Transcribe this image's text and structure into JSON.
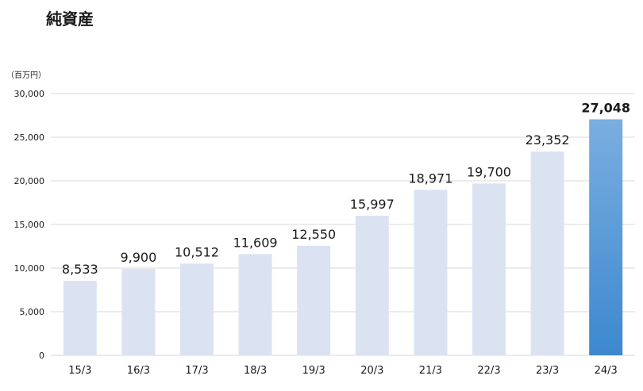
{
  "chart_data": {
    "type": "bar",
    "title": "純資産",
    "ylabel": "（百万円）",
    "xlabel": "",
    "categories": [
      "15/3",
      "16/3",
      "17/3",
      "18/3",
      "19/3",
      "20/3",
      "21/3",
      "22/3",
      "23/3",
      "24/3"
    ],
    "values": [
      8533,
      9900,
      10512,
      11609,
      12550,
      15997,
      18971,
      19700,
      23352,
      27048
    ],
    "value_labels": [
      "8,533",
      "9,900",
      "10,512",
      "11,609",
      "12,550",
      "15,997",
      "18,971",
      "19,700",
      "23,352",
      "27,048"
    ],
    "yticks": [
      0,
      5000,
      10000,
      15000,
      20000,
      25000,
      30000
    ],
    "ytick_labels": [
      "0",
      "5,000",
      "10,000",
      "15,000",
      "20,000",
      "25,000",
      "30,000"
    ],
    "ylim": [
      0,
      30000
    ],
    "grid": true,
    "highlight_index": 9,
    "colors": {
      "bar": "#dbe3f3",
      "highlight_top": "#7aaee0",
      "highlight_bottom": "#3d88cf",
      "grid": "#d9d9d9"
    }
  }
}
